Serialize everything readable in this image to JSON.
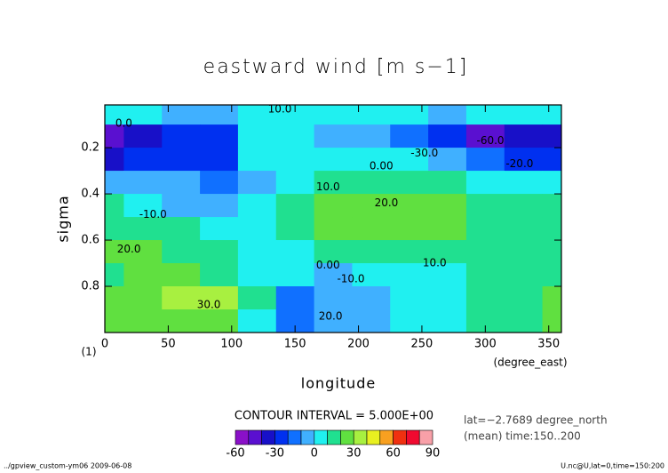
{
  "chart_data": {
    "type": "contour",
    "title": "eastward wind [m s−1]",
    "xlabel": "longitude",
    "ylabel": "sigma",
    "x_unit": "(degree_east)",
    "y_unit": "(1)",
    "contour_interval": "CONTOUR INTERVAL = 5.000E+00",
    "info": [
      "lat=−2.7689 degree_north",
      "(mean) time:150..200"
    ],
    "footer_left": "../gpview_custom-ym06  2009-06-08",
    "footer_right": "U.nc@U,lat=0,time=150:200",
    "xlim": [
      0,
      360
    ],
    "xticks": [
      0,
      50,
      100,
      150,
      200,
      250,
      300,
      350
    ],
    "ylim": [
      1.0,
      0.015
    ],
    "yticks": [
      0.2,
      0.4,
      0.6,
      0.8
    ],
    "x": [
      0,
      30,
      60,
      90,
      120,
      150,
      180,
      210,
      240,
      270,
      300,
      330,
      360
    ],
    "y": [
      0.05,
      0.15,
      0.25,
      0.35,
      0.45,
      0.55,
      0.65,
      0.75,
      0.85,
      0.95
    ],
    "z": [
      [
        2,
        3,
        -5,
        -8,
        0,
        3,
        5,
        3,
        0,
        -3,
        2,
        3,
        2
      ],
      [
        -45,
        -35,
        -30,
        -25,
        5,
        0,
        -5,
        -10,
        -20,
        -30,
        -45,
        -40,
        -35
      ],
      [
        -35,
        -30,
        -25,
        -22,
        0,
        5,
        5,
        5,
        0,
        -5,
        -15,
        -25,
        -30
      ],
      [
        -2,
        -5,
        -10,
        -15,
        -5,
        8,
        12,
        12,
        12,
        10,
        5,
        3,
        0
      ],
      [
        12,
        5,
        -5,
        -10,
        0,
        15,
        20,
        22,
        22,
        20,
        15,
        15,
        12
      ],
      [
        15,
        15,
        12,
        5,
        3,
        15,
        20,
        22,
        22,
        20,
        18,
        15,
        15
      ],
      [
        20,
        20,
        18,
        12,
        2,
        8,
        12,
        12,
        12,
        12,
        15,
        15,
        15
      ],
      [
        18,
        22,
        20,
        18,
        5,
        0,
        -2,
        0,
        3,
        8,
        12,
        15,
        18
      ],
      [
        20,
        28,
        32,
        30,
        10,
        -20,
        -10,
        -8,
        0,
        5,
        10,
        12,
        20
      ],
      [
        20,
        25,
        28,
        25,
        5,
        -15,
        -8,
        -5,
        5,
        8,
        12,
        15,
        20
      ]
    ],
    "contour_labels": [
      {
        "text": "10.0",
        "x": 138,
        "y": 0.035
      },
      {
        "text": "0.0",
        "x": 15,
        "y": 0.095
      },
      {
        "text": "-60.0",
        "x": 304,
        "y": 0.17
      },
      {
        "text": "-30.0",
        "x": 252,
        "y": 0.225
      },
      {
        "text": "0.00",
        "x": 218,
        "y": 0.28
      },
      {
        "text": "-20.0",
        "x": 327,
        "y": 0.27
      },
      {
        "text": "10.0",
        "x": 176,
        "y": 0.37
      },
      {
        "text": "20.0",
        "x": 222,
        "y": 0.44
      },
      {
        "text": "-10.0",
        "x": 38,
        "y": 0.49
      },
      {
        "text": "20.0",
        "x": 19,
        "y": 0.64
      },
      {
        "text": "0.00",
        "x": 176,
        "y": 0.71
      },
      {
        "text": "10.0",
        "x": 260,
        "y": 0.7
      },
      {
        "text": "-10.0",
        "x": 194,
        "y": 0.77
      },
      {
        "text": "30.0",
        "x": 82,
        "y": 0.88
      },
      {
        "text": "20.0",
        "x": 178,
        "y": 0.93
      }
    ],
    "colorbar": {
      "levels": [
        -60,
        -50,
        -40,
        -30,
        -20,
        -10,
        0,
        10,
        20,
        30,
        40,
        50,
        60,
        70,
        80,
        90
      ],
      "colors": [
        "#8a10c8",
        "#5a10d0",
        "#1810c8",
        "#0030f0",
        "#1070ff",
        "#40b0ff",
        "#20f0f0",
        "#20e090",
        "#60e040",
        "#a8f040",
        "#e8f020",
        "#f8a020",
        "#f03010",
        "#f00a30",
        "#f8a0a8"
      ],
      "ticks": [
        -60,
        -30,
        0,
        30,
        60,
        90
      ]
    }
  }
}
